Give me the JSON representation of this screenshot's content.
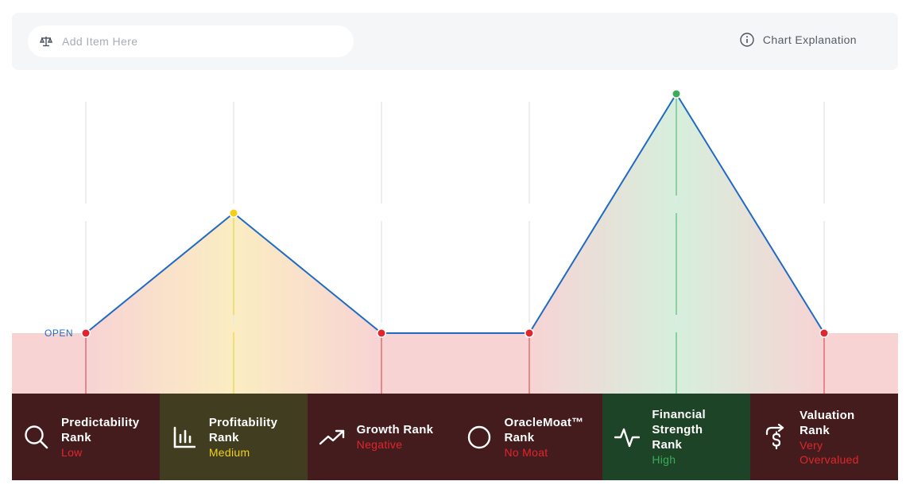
{
  "search": {
    "placeholder": "Add Item Here"
  },
  "header": {
    "chart_explanation_label": "Chart Explanation"
  },
  "colors": {
    "red": "#e0262c",
    "yellow": "#f2d01c",
    "green": "#3daa5c",
    "line": "#1f6bc4",
    "card_red": "#451c1e",
    "card_yellow": "#413d20",
    "card_green": "#1d4426"
  },
  "chart_data": {
    "type": "line",
    "baseline_label": "OPEN",
    "categories": [
      "Predictability Rank",
      "Profitability Rank",
      "Growth Rank",
      "OracleMoat™ Rank",
      "Financial Strength Rank",
      "Valuation Rank"
    ],
    "levels": [
      "Low",
      "Medium",
      "Negative",
      "No Moat",
      "High",
      "Very Overvalued"
    ],
    "values": [
      0,
      1,
      0,
      0,
      2,
      0
    ],
    "point_colors": [
      "red",
      "yellow",
      "red",
      "red",
      "green",
      "red"
    ],
    "ylim": [
      0,
      2
    ],
    "grid": true
  },
  "cards": [
    {
      "title": "Predictability Rank",
      "value": "Low",
      "status": "red",
      "icon": "search-icon"
    },
    {
      "title": "Profitability Rank",
      "value": "Medium",
      "status": "yellow",
      "icon": "bar-chart-icon"
    },
    {
      "title": "Growth Rank",
      "value": "Negative",
      "status": "red",
      "icon": "trend-up-icon"
    },
    {
      "title": "OracleMoat™ Rank",
      "value": "No Moat",
      "status": "red",
      "icon": "circle-icon"
    },
    {
      "title": "Financial Strength Rank",
      "value": "High",
      "status": "green",
      "icon": "pulse-icon"
    },
    {
      "title": "Valuation Rank",
      "value": "Very Overvalued",
      "status": "red",
      "icon": "dollar-exchange-icon"
    }
  ]
}
